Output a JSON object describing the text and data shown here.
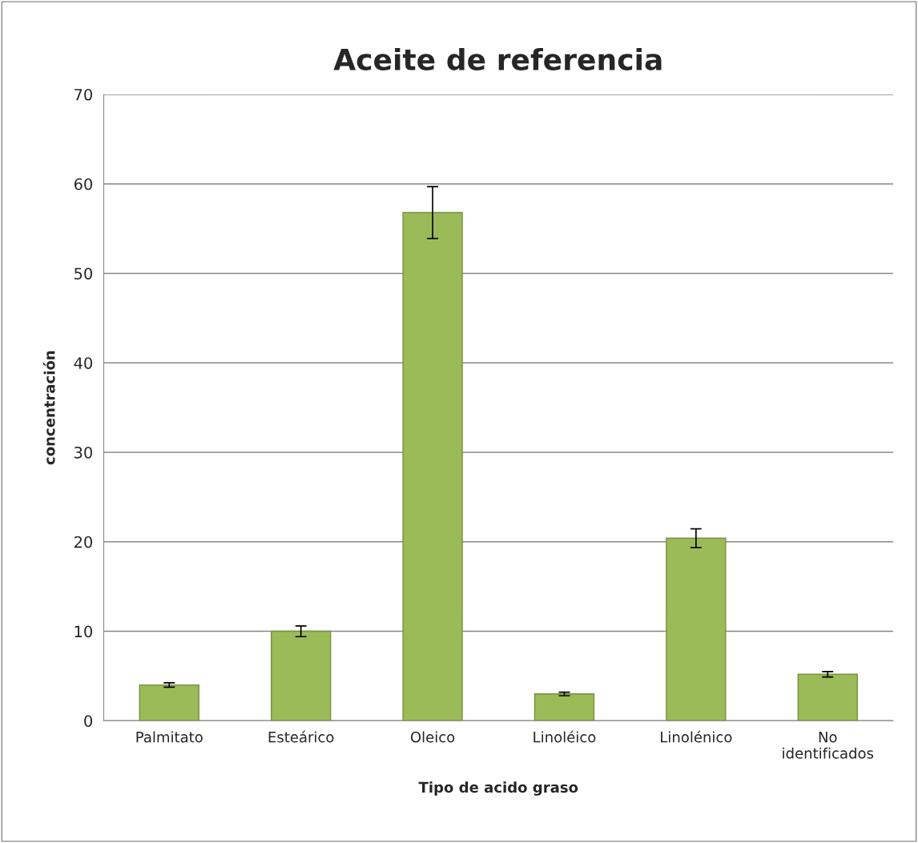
{
  "chart_data": {
    "type": "bar",
    "title": "Aceite de referencia",
    "xlabel": "Tipo de acido graso",
    "ylabel": "concentración",
    "categories": [
      "Palmitato",
      "Esteárico",
      "Oleico",
      "Linoléico",
      "Linolénico",
      "No\nidentificados"
    ],
    "values": [
      4.0,
      10.0,
      56.8,
      3.0,
      20.4,
      5.2
    ],
    "errors": [
      0.25,
      0.6,
      2.9,
      0.2,
      1.05,
      0.3
    ],
    "color": "#9bbb59",
    "ylim": [
      0,
      70
    ],
    "yticks": [
      0,
      10,
      20,
      30,
      40,
      50,
      60,
      70
    ],
    "grid": "y",
    "legend": false
  }
}
